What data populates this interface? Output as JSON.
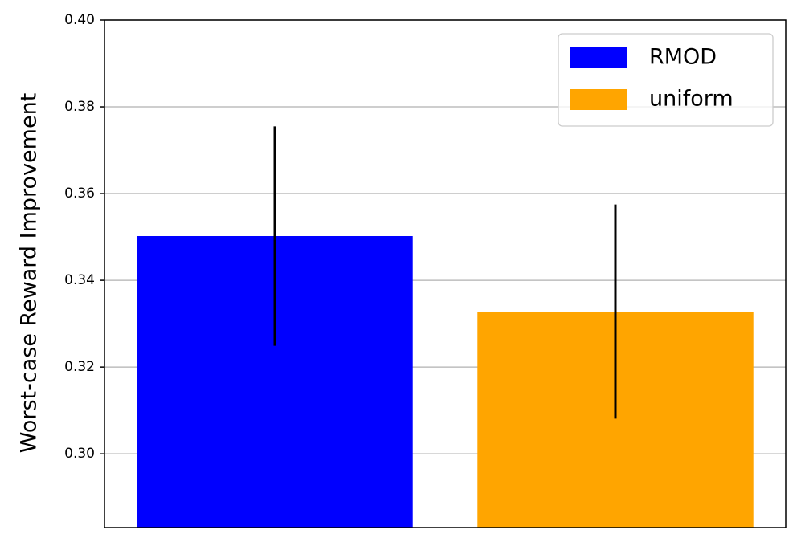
{
  "chart_data": {
    "type": "bar",
    "ylabel": "Worst-case Reward Improvement",
    "series": [
      {
        "name": "RMOD",
        "color": "#0000ff",
        "values": [
          0.3502
        ],
        "errors": [
          0.0253
        ]
      },
      {
        "name": "uniform",
        "color": "#ffa500",
        "values": [
          0.3328
        ],
        "errors": [
          0.0247
        ]
      }
    ],
    "ylim": [
      0.283,
      0.4
    ],
    "yticks": [
      {
        "value": 0.3,
        "label": "0.30"
      },
      0.32,
      0.34,
      0.36,
      0.38,
      {
        "value": 0.4,
        "label": "0.40"
      }
    ],
    "grid": true,
    "legend": "upper right"
  }
}
